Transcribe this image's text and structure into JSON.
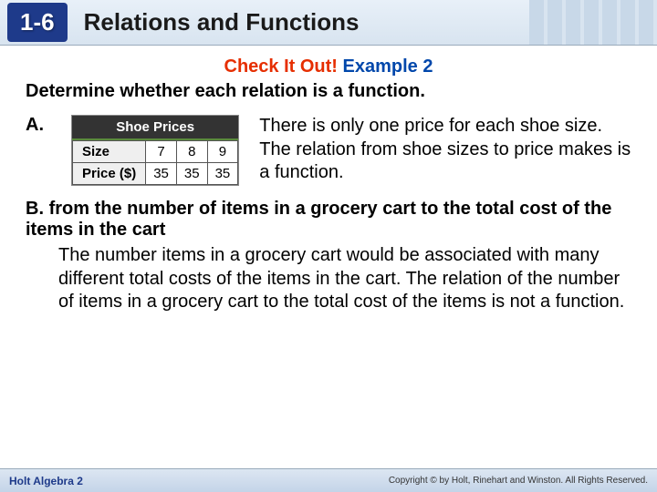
{
  "header": {
    "badge": "1-6",
    "title": "Relations and Functions"
  },
  "callout": {
    "red": "Check It Out!",
    "blue": "Example  2"
  },
  "prompt": "Determine whether each relation is a function.",
  "partA": {
    "label": "A.",
    "table": {
      "title": "Shoe Prices",
      "rows": [
        {
          "label": "Size",
          "cells": [
            "7",
            "8",
            "9"
          ]
        },
        {
          "label": "Price ($)",
          "cells": [
            "35",
            "35",
            "35"
          ]
        }
      ]
    },
    "explanation": "There is only one price for each shoe size. The relation from shoe sizes to price makes is a function."
  },
  "partB": {
    "label": "B.",
    "title": "from the number of items in a grocery cart to the total cost of the items in the cart",
    "explanation": "The number items in a grocery cart would be associated with many different total costs of the items in the cart. The relation of the number of items in a grocery cart to the total cost of the items is not a function."
  },
  "footer": {
    "left": "Holt Algebra 2",
    "right": "Copyright © by Holt, Rinehart and Winston. All Rights Reserved."
  },
  "colors": {
    "badge_bg": "#1e3a8a",
    "red": "#e62e00",
    "blue": "#0047ab"
  }
}
